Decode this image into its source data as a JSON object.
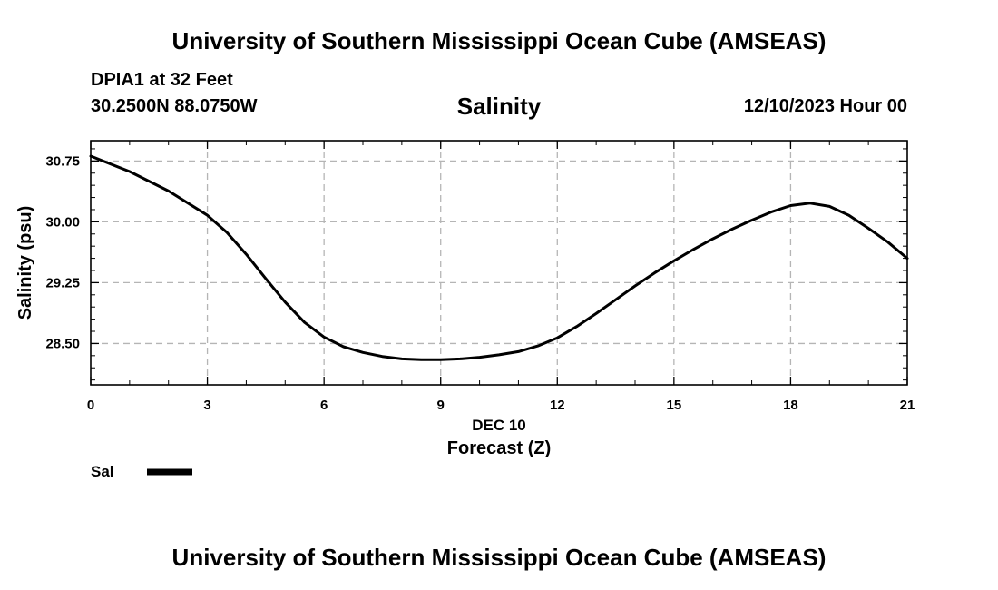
{
  "header": {
    "top_title": "University of Southern Mississippi Ocean Cube (AMSEAS)",
    "station": "DPIA1 at 32 Feet",
    "coords": "30.2500N  88.0750W",
    "date_hour": "12/10/2023 Hour 00"
  },
  "footer": {
    "bottom_title": "University of Southern Mississippi Ocean Cube (AMSEAS)"
  },
  "chart_data": {
    "type": "line",
    "title": "Salinity",
    "xlabel": "Forecast (Z)",
    "xsublabel": "DEC 10",
    "ylabel": "Salinity (psu)",
    "xlim": [
      0,
      21
    ],
    "ylim": [
      27.99,
      31.0
    ],
    "xticks": [
      0,
      3,
      6,
      9,
      12,
      15,
      18,
      21
    ],
    "xtick_labels": [
      "0",
      "3",
      "6",
      "9",
      "12",
      "15",
      "18",
      "21"
    ],
    "yticks": [
      28.5,
      29.25,
      30.0,
      30.75
    ],
    "ytick_labels": [
      "28.50",
      "29.25",
      "30.00",
      "30.75"
    ],
    "grid": true,
    "legend_position": "bottom-left",
    "series": [
      {
        "name": "Sal",
        "color": "#000000",
        "x": [
          0,
          1,
          2,
          3,
          3.5,
          4,
          4.5,
          5,
          5.5,
          6,
          6.5,
          7,
          7.5,
          8,
          8.5,
          9,
          9.5,
          10,
          10.5,
          11,
          11.5,
          12,
          12.5,
          13,
          13.5,
          14,
          14.5,
          15,
          15.5,
          16,
          16.5,
          17,
          17.5,
          18,
          18.5,
          19,
          19.5,
          20,
          20.5,
          21
        ],
        "values": [
          30.81,
          30.62,
          30.38,
          30.08,
          29.87,
          29.6,
          29.3,
          29.01,
          28.76,
          28.58,
          28.46,
          28.39,
          28.34,
          28.31,
          28.3,
          28.3,
          28.31,
          28.33,
          28.36,
          28.4,
          28.47,
          28.57,
          28.71,
          28.87,
          29.04,
          29.21,
          29.37,
          29.52,
          29.66,
          29.79,
          29.91,
          30.02,
          30.12,
          30.2,
          30.23,
          30.19,
          30.08,
          29.92,
          29.75,
          29.55
        ]
      }
    ]
  }
}
